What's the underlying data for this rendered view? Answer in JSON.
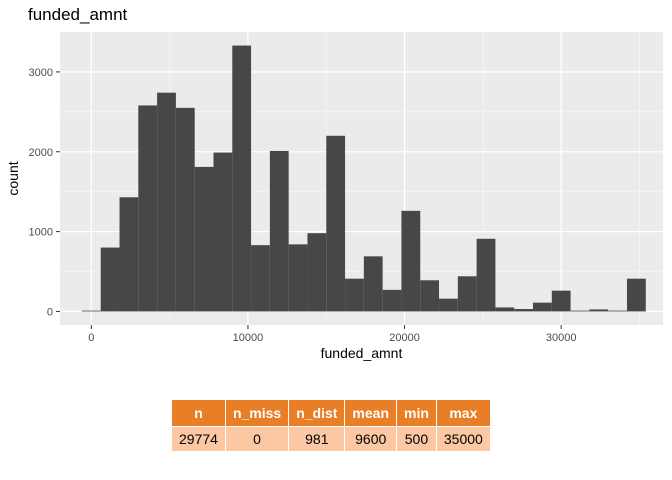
{
  "chart_data": {
    "type": "bar",
    "title": "funded_amnt",
    "xlabel": "funded_amnt",
    "ylabel": "count",
    "xlim": [
      -2000,
      36500
    ],
    "ylim": [
      -170,
      3500
    ],
    "x_ticks": [
      0,
      10000,
      20000,
      30000
    ],
    "x_tick_labels": [
      "0",
      "10000",
      "20000",
      "30000"
    ],
    "y_ticks": [
      0,
      1000,
      2000,
      3000
    ],
    "y_tick_labels": [
      "0",
      "1000",
      "2000",
      "3000"
    ],
    "grid": true,
    "bin_width": 1200,
    "bin_centers": [
      0,
      1200,
      2400,
      3600,
      4800,
      6000,
      7200,
      8400,
      9600,
      10800,
      12000,
      13200,
      14400,
      15600,
      16800,
      18000,
      19200,
      20400,
      21600,
      22800,
      24000,
      25200,
      26400,
      27600,
      28800,
      30000,
      31200,
      32400,
      33600,
      34800
    ],
    "values": [
      10,
      800,
      1430,
      2580,
      2740,
      2550,
      1810,
      1990,
      3330,
      830,
      2010,
      840,
      980,
      2200,
      410,
      690,
      270,
      1260,
      390,
      160,
      440,
      910,
      50,
      30,
      110,
      260,
      10,
      25,
      10,
      410
    ],
    "bar_color": "#474747",
    "panel_background": "#EBEBEB"
  },
  "summary_table": {
    "headers": [
      "n",
      "n_miss",
      "n_dist",
      "mean",
      "min",
      "max"
    ],
    "row": [
      "29774",
      "0",
      "981",
      "9600",
      "500",
      "35000"
    ],
    "header_color": "#E87E26",
    "cell_color": "#FBC8A3"
  }
}
